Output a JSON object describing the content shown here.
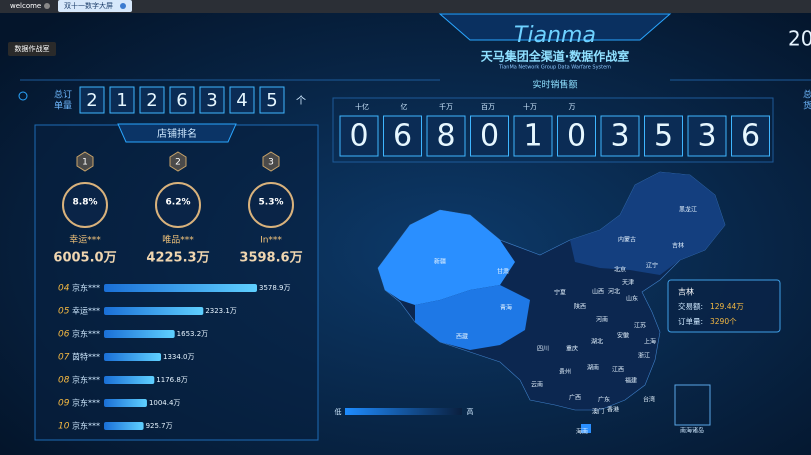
{
  "tabs": [
    "welcome",
    "双十一数字大屏"
  ],
  "tooltip": "数据作战室",
  "header": {
    "logo": "Tianma",
    "title": "天马集团全渠道·数据作战室",
    "subtitle": "TianMa Network Group Data Warfare System",
    "year": "20"
  },
  "orders": {
    "label": [
      "总订",
      "单量"
    ],
    "digits": [
      "2",
      "1",
      "2",
      "6",
      "3",
      "4",
      "5"
    ],
    "unit": "个"
  },
  "right_label": [
    "总",
    "货"
  ],
  "sales": {
    "title": "实时销售额",
    "units": [
      "十亿",
      "亿",
      "千万",
      "百万",
      "十万",
      "万"
    ],
    "digits": [
      "0",
      "6",
      "8",
      "0",
      "1",
      "0",
      "3",
      "5",
      "3",
      "6"
    ]
  },
  "ranking": {
    "title": "店铺排名",
    "podium": [
      {
        "rank": "1",
        "percent": "8.8%",
        "name": "幸运***",
        "amount": "6005.0万"
      },
      {
        "rank": "2",
        "percent": "6.2%",
        "name": "唯品***",
        "amount": "4225.3万"
      },
      {
        "rank": "3",
        "percent": "5.3%",
        "name": "In***",
        "amount": "3598.6万"
      }
    ],
    "list": [
      {
        "rank": "04",
        "name": "京东***",
        "value": 3578.9,
        "value_label": "3578.9万"
      },
      {
        "rank": "05",
        "name": "幸运***",
        "value": 2323.1,
        "value_label": "2323.1万"
      },
      {
        "rank": "06",
        "name": "京东***",
        "value": 1653.2,
        "value_label": "1653.2万"
      },
      {
        "rank": "07",
        "name": "茵特***",
        "value": 1334.0,
        "value_label": "1334.0万"
      },
      {
        "rank": "08",
        "name": "京东***",
        "value": 1176.8,
        "value_label": "1176.8万"
      },
      {
        "rank": "09",
        "name": "京东***",
        "value": 1004.4,
        "value_label": "1004.4万"
      },
      {
        "rank": "10",
        "name": "京东***",
        "value": 925.7,
        "value_label": "925.7万"
      }
    ]
  },
  "map": {
    "provinces": [
      "黑龙江",
      "吉林",
      "内蒙古",
      "辽宁",
      "北京",
      "天津",
      "河北",
      "山西",
      "山东",
      "宁夏",
      "甘肃",
      "新疆",
      "青海",
      "西藏",
      "陕西",
      "河南",
      "江苏",
      "安徽",
      "上海",
      "湖北",
      "四川",
      "重庆",
      "浙江",
      "湖南",
      "江西",
      "贵州",
      "福建",
      "云南",
      "广西",
      "广东",
      "台湾",
      "香港",
      "澳门",
      "海南"
    ],
    "legend": {
      "low": "低",
      "high": "高"
    },
    "tooltip": {
      "region": "吉林",
      "rows": [
        {
          "label": "交易额:",
          "value": "129.44万"
        },
        {
          "label": "订单量:",
          "value": "3290个"
        }
      ]
    },
    "inset": "南海诸岛"
  }
}
